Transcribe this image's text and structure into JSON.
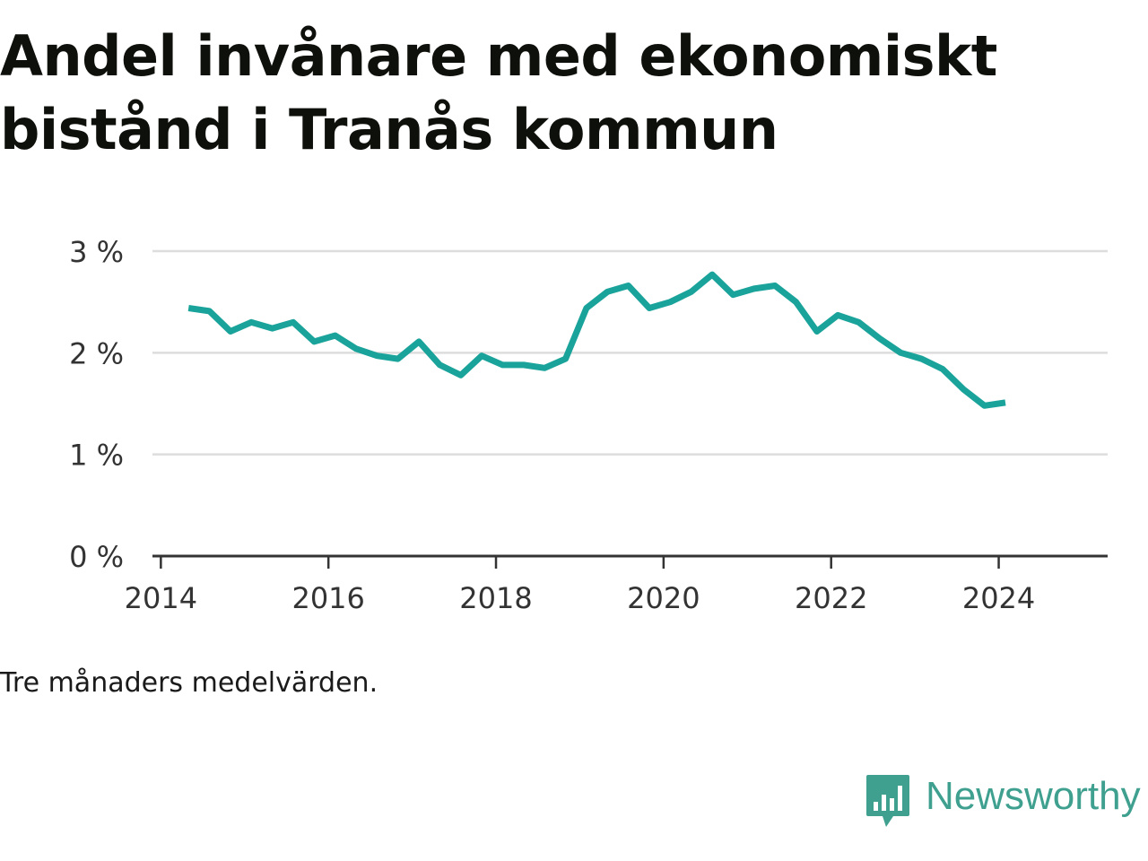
{
  "title": "Andel invånare med ekonomiskt bistånd i Tranås kommun",
  "note": "Tre månaders medelvärden.",
  "brand": {
    "name": "Newsworthy",
    "icon": "newsworthy-logo-icon",
    "color": "#3fa090"
  },
  "colors": {
    "line": "#1aa39a",
    "grid": "#dddddd",
    "axis": "#333333"
  },
  "chart_data": {
    "type": "line",
    "title": "Andel invånare med ekonomiskt bistånd i Tranås kommun",
    "xlabel": "",
    "ylabel": "",
    "grid": true,
    "xlim": [
      2013.9,
      2025.3
    ],
    "ylim": [
      0,
      3
    ],
    "x_ticks": [
      2014,
      2016,
      2018,
      2020,
      2022,
      2024
    ],
    "x_tick_labels": [
      "2014",
      "2016",
      "2018",
      "2020",
      "2022",
      "2024"
    ],
    "y_ticks": [
      0,
      1,
      2,
      3
    ],
    "y_tick_labels": [
      "0 %",
      "1 %",
      "2 %",
      "3 %"
    ],
    "series": [
      {
        "x": [
          2014.33,
          2014.58,
          2014.83,
          2015.08,
          2015.33,
          2015.58,
          2015.83,
          2016.08,
          2016.33,
          2016.58,
          2016.83,
          2017.08,
          2017.33,
          2017.58,
          2017.83,
          2018.08,
          2018.33,
          2018.58,
          2018.83,
          2019.08,
          2019.33,
          2019.58,
          2019.83,
          2020.08,
          2020.33,
          2020.58,
          2020.83,
          2021.08,
          2021.33,
          2021.58,
          2021.83,
          2022.08,
          2022.33,
          2022.58,
          2022.83,
          2023.08,
          2023.33,
          2023.58,
          2023.83,
          2024.08
        ],
        "values": [
          2.44,
          2.41,
          2.21,
          2.3,
          2.24,
          2.3,
          2.11,
          2.17,
          2.04,
          1.97,
          1.94,
          2.11,
          1.88,
          1.78,
          1.97,
          1.88,
          1.88,
          1.85,
          1.94,
          2.44,
          2.6,
          2.66,
          2.44,
          2.5,
          2.6,
          2.77,
          2.57,
          2.63,
          2.66,
          2.5,
          2.21,
          2.37,
          2.3,
          2.14,
          2.0,
          1.94,
          1.84,
          1.64,
          1.48,
          1.51
        ]
      }
    ]
  }
}
